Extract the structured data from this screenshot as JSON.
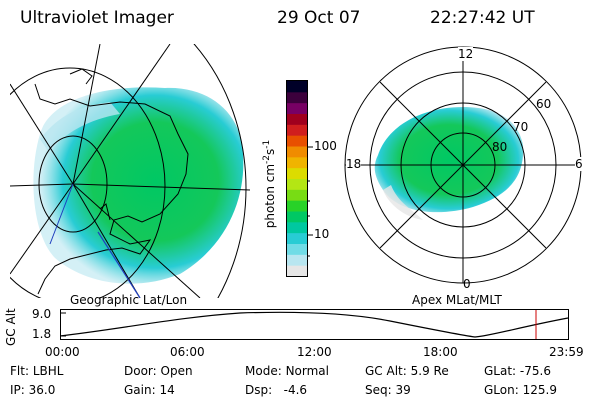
{
  "header": {
    "title": "Ultraviolet Imager",
    "date": "29 Oct 07",
    "time": "22:27:42 UT"
  },
  "colorbar": {
    "label_main": "photon cm",
    "label_exp1": "-2",
    "label_mid": "s",
    "label_exp2": "-1",
    "ticks": [
      "100",
      "10"
    ],
    "colors": [
      "#e6e6e6",
      "#b8e6f0",
      "#70dce6",
      "#28ccd4",
      "#00c8a0",
      "#00c864",
      "#28d228",
      "#78dc14",
      "#b4e614",
      "#dcdc00",
      "#f0b400",
      "#f08c00",
      "#e85000",
      "#d01e1e",
      "#a0001e",
      "#780064",
      "#3c003c",
      "#000028"
    ]
  },
  "left_panel": {
    "label": "Geographic Lat/Lon"
  },
  "right_panel": {
    "label": "Apex MLat/MLT",
    "mlt_labels": {
      "top": "12",
      "left": "18",
      "right": "6",
      "bottom": "0"
    },
    "mlat_labels": [
      "60",
      "70",
      "80"
    ]
  },
  "altitude_plot": {
    "ylabel": "GC Alt",
    "yticks": [
      "9.0",
      "1.8"
    ],
    "xticks": [
      "00:00",
      "06:00",
      "12:00",
      "18:00",
      "23:59"
    ],
    "marker_color": "#cc0000"
  },
  "info": {
    "row1": [
      {
        "label": "Flt:",
        "value": "LBHL"
      },
      {
        "label": "Door:",
        "value": "Open"
      },
      {
        "label": "Mode:",
        "value": "Normal"
      },
      {
        "label": "GC Alt:",
        "value": "5.9 Re"
      },
      {
        "label": "GLat:",
        "value": "-75.6"
      }
    ],
    "row2": [
      {
        "label": "IP:",
        "value": "36.0"
      },
      {
        "label": "Gain:",
        "value": "14"
      },
      {
        "label": "Dsp:",
        "value": "-4.6"
      },
      {
        "label": "Seq:",
        "value": "39"
      },
      {
        "label": "GLon:",
        "value": "125.9"
      }
    ]
  }
}
